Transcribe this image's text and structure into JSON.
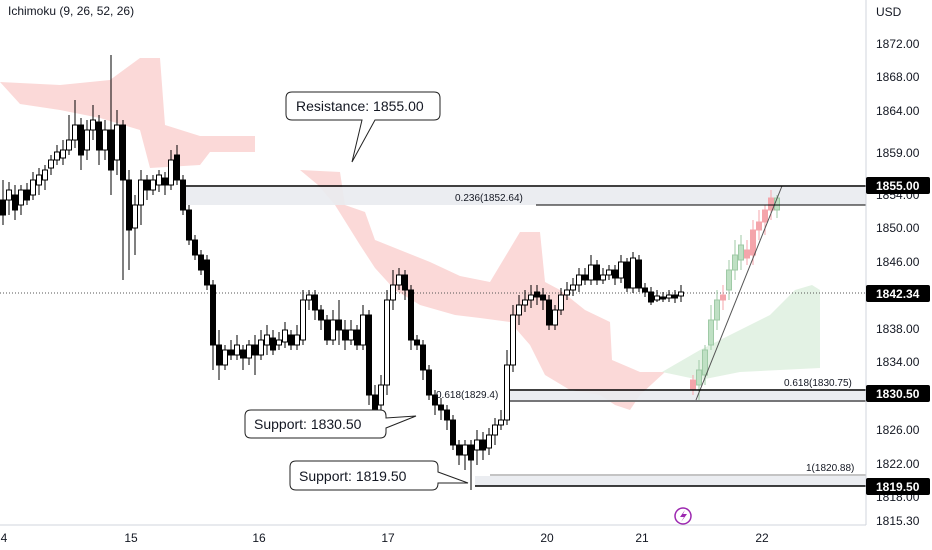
{
  "indicator_label": "Ichimoku (9, 26, 52, 26)",
  "currency": "USD",
  "price_ticks": [
    "1872.00",
    "1868.00",
    "1864.00",
    "1859.00",
    "1854.00",
    "1850.00",
    "1846.00",
    "1842.00",
    "1838.00",
    "1834.00",
    "1830.00",
    "1826.00",
    "1822.00",
    "1818.00",
    "1815.30"
  ],
  "date_ticks": [
    "4",
    "15",
    "16",
    "17",
    "20",
    "21",
    "22"
  ],
  "tags": {
    "resistance": "1855.00",
    "current": "1842.34",
    "support1": "1830.50",
    "support2": "1819.50"
  },
  "callouts": {
    "resistance": "Resistance: 1855.00",
    "support1": "Support: 1830.50",
    "support2": "Support: 1819.50"
  },
  "fib": {
    "f236": "0.236(1852.64)",
    "f618_left": "0.618(1829.4)",
    "f618_right": "0.618(1830.75)",
    "f1": "1(1820.88)"
  },
  "colors": {
    "bull": "#ffffff",
    "bear": "#000000",
    "pinkcandle": "#f4a5ab",
    "greencandle": "#bfe0c4",
    "cloud_red": "#fbd9d8",
    "cloud_green": "#e3f2e4",
    "price_tag": "#000000"
  },
  "chart_data": {
    "type": "candlestick",
    "x": [
      "4",
      "15",
      "16",
      "17",
      "20",
      "21",
      "22"
    ],
    "ylim": [
      1815.3,
      1875
    ],
    "levels": {
      "resistance": 1855.0,
      "support1": 1830.5,
      "support2": 1819.5,
      "current": 1842.34
    },
    "fibonacci": {
      "0.236": 1852.64,
      "0.618": 1830.75,
      "1": 1820.88
    }
  }
}
